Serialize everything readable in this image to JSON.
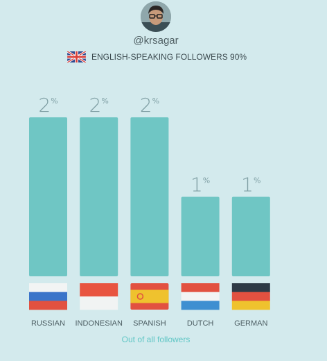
{
  "header": {
    "username": "@krsagar",
    "subtitle": "ENGLISH-SPEAKING FOLLOWERS 90%",
    "flag_icon": "uk-flag-icon"
  },
  "chart_data": {
    "type": "bar",
    "categories": [
      "RUSSIAN",
      "INDONESIAN",
      "SPANISH",
      "DUTCH",
      "GERMAN"
    ],
    "values": [
      2,
      2,
      2,
      1,
      1
    ],
    "value_suffix": "%",
    "flags": [
      "russia-flag-icon",
      "indonesia-flag-icon",
      "spain-flag-icon",
      "netherlands-flag-icon",
      "germany-flag-icon"
    ],
    "bar_color": "#6fc6c4",
    "ylim": [
      0,
      2
    ],
    "grid": false
  },
  "footer": {
    "note": "Out of all followers"
  },
  "colors": {
    "background": "#d3eaed",
    "bar": "#6fc6c4",
    "label": "#7e9ea3",
    "accent": "#5fc6c5"
  }
}
